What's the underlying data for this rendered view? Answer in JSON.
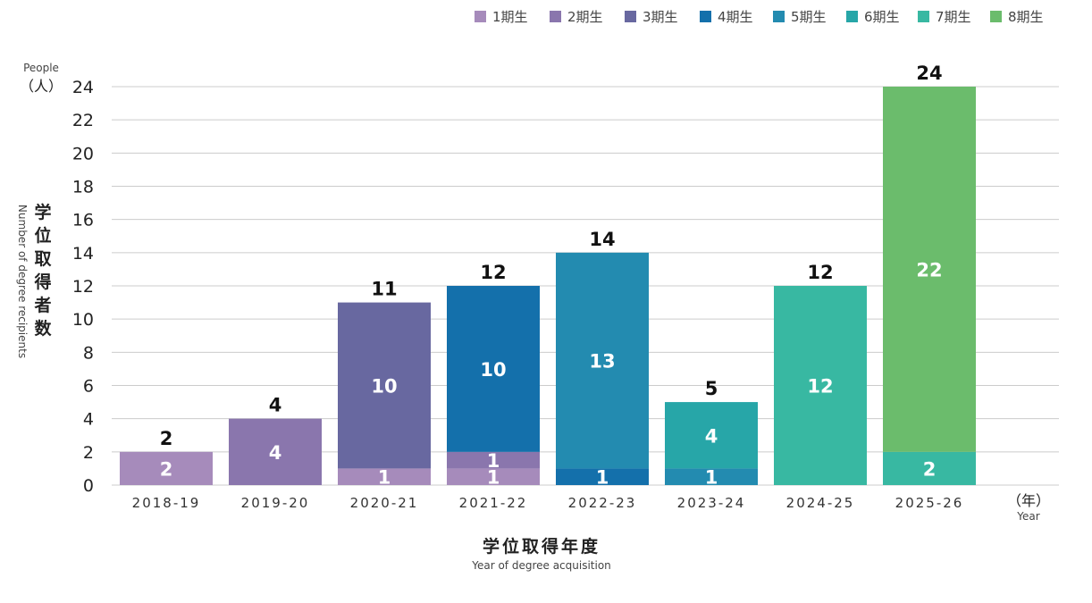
{
  "chart_data": {
    "type": "bar",
    "stacked": true,
    "categories": [
      "2018-19",
      "2019-20",
      "2020-21",
      "2021-22",
      "2022-23",
      "2023-24",
      "2024-25",
      "2025-26"
    ],
    "series": [
      {
        "name": "1期生",
        "color": "#a68bbb",
        "values": [
          2,
          0,
          1,
          1,
          0,
          0,
          0,
          0
        ]
      },
      {
        "name": "2期生",
        "color": "#8a76ad",
        "values": [
          0,
          4,
          0,
          1,
          0,
          0,
          0,
          0
        ]
      },
      {
        "name": "3期生",
        "color": "#6868a0",
        "values": [
          0,
          0,
          10,
          0,
          0,
          0,
          0,
          0
        ]
      },
      {
        "name": "4期生",
        "color": "#1470ab",
        "values": [
          0,
          0,
          0,
          10,
          1,
          0,
          0,
          0
        ]
      },
      {
        "name": "5期生",
        "color": "#238bb0",
        "values": [
          0,
          0,
          0,
          0,
          13,
          1,
          0,
          0
        ]
      },
      {
        "name": "6期生",
        "color": "#27a6a8",
        "values": [
          0,
          0,
          0,
          0,
          0,
          4,
          0,
          0
        ]
      },
      {
        "name": "7期生",
        "color": "#38b8a2",
        "values": [
          0,
          0,
          0,
          0,
          0,
          0,
          12,
          2
        ]
      },
      {
        "name": "8期生",
        "color": "#6bbc6c",
        "values": [
          0,
          0,
          0,
          0,
          0,
          0,
          0,
          22
        ]
      }
    ],
    "totals": [
      2,
      4,
      11,
      12,
      14,
      5,
      12,
      24
    ],
    "ylim": [
      0,
      24
    ],
    "yticks": [
      0,
      2,
      4,
      6,
      8,
      10,
      12,
      14,
      16,
      18,
      20,
      22,
      24
    ],
    "ylabel": "学位取得者数",
    "ylabel_en": "Number of degree recipients",
    "yunit": "（人）",
    "yunit_en": "People",
    "xlabel": "学位取得年度",
    "xlabel_en": "Year of degree acquisition",
    "xunit": "（年）",
    "xunit_en": "Year",
    "grid": true,
    "legend_position": "top-right"
  }
}
